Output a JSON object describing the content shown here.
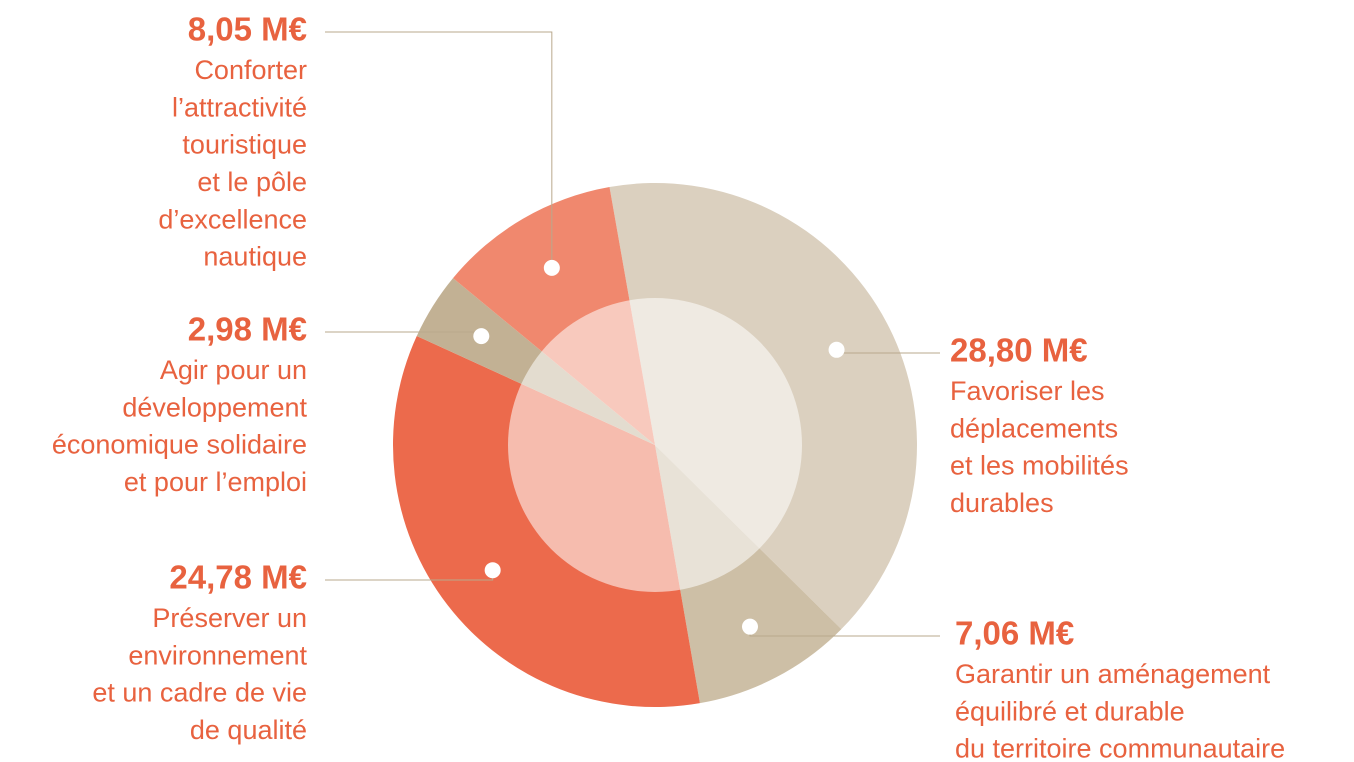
{
  "chart_data": {
    "type": "pie",
    "categories": [
      [
        "Favoriser les",
        "déplacements",
        "et les mobilités",
        "durables"
      ],
      [
        "Garantir un aménagement",
        "équilibré et durable",
        "du territoire communautaire"
      ],
      [
        "Préserver un",
        "environnement",
        "et un cadre de vie",
        "de qualité"
      ],
      [
        "Agir pour un",
        "développement",
        "économique solidaire",
        "et pour l’emploi"
      ],
      [
        "Conforter",
        "l’attractivité",
        "touristique",
        "et le pôle",
        "d’excellence",
        "nautique"
      ]
    ],
    "values": [
      28.8,
      7.06,
      24.78,
      2.98,
      8.05
    ],
    "value_labels": [
      "28,80 M€",
      "7,06 M€",
      "24,78 M€",
      "2,98 M€",
      "8,05 M€"
    ],
    "colors": [
      "#dbd0bf",
      "#cdbfa6",
      "#ec6a4c",
      "#c2b194",
      "#f0886e"
    ]
  }
}
